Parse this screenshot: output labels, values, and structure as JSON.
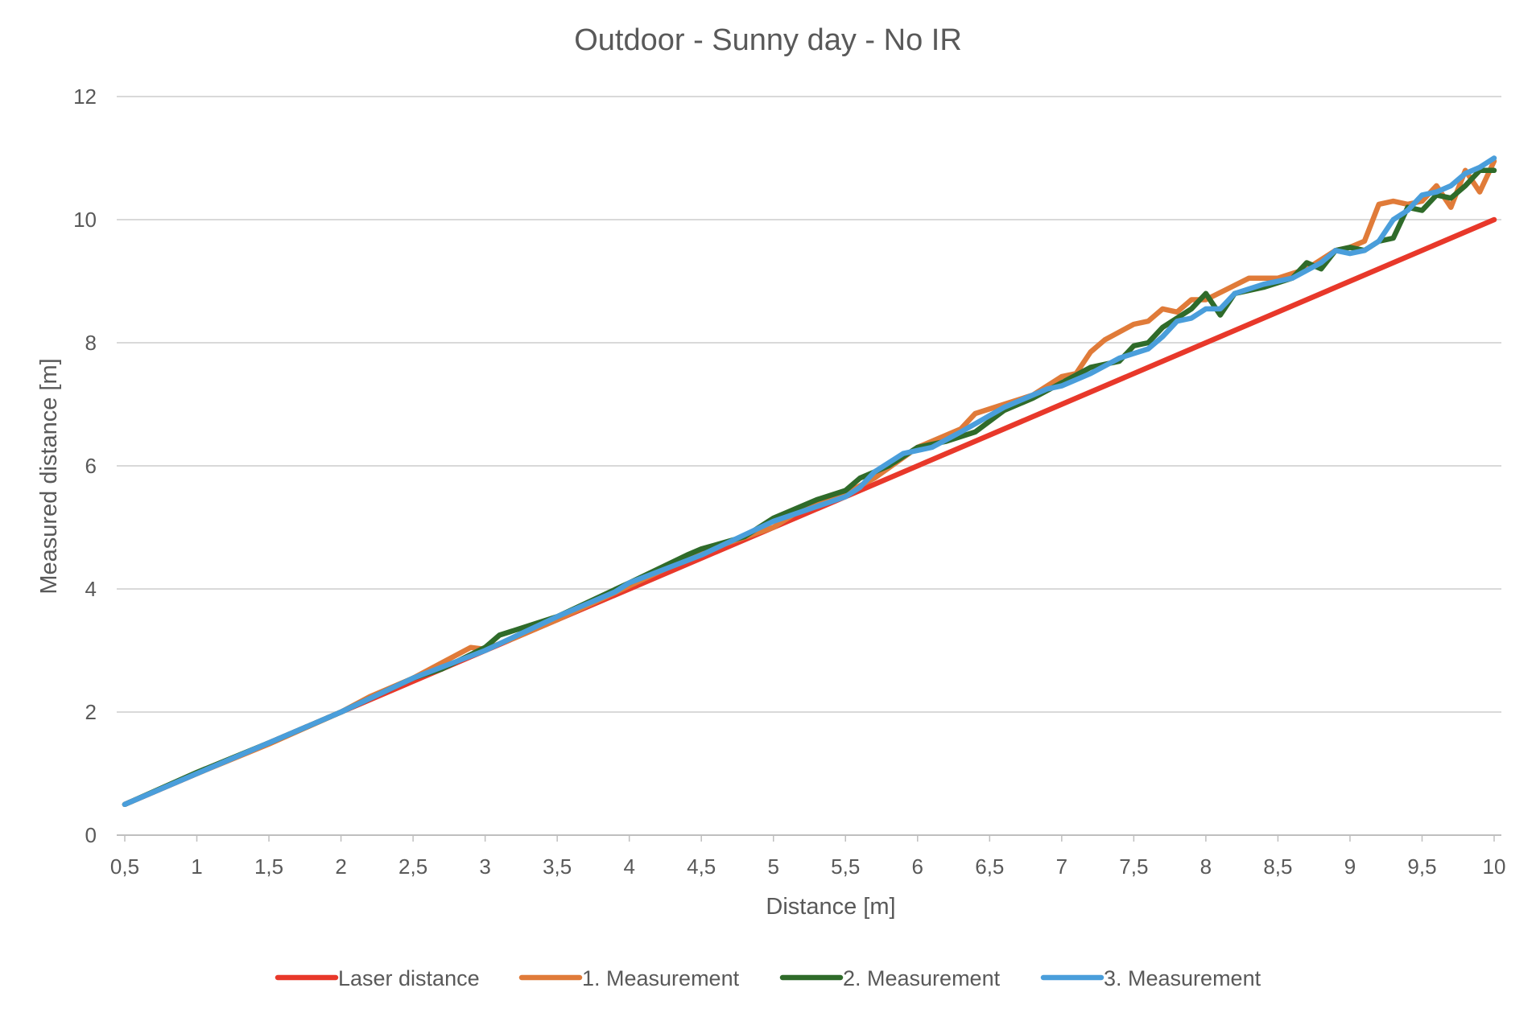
{
  "chart_data": {
    "type": "line",
    "title": "Outdoor - Sunny day - No IR",
    "xlabel": "Distance [m]",
    "ylabel": "Measured distance [m]",
    "xlim": [
      0.5,
      10
    ],
    "ylim": [
      0,
      12
    ],
    "grid": true,
    "legend_position": "bottom",
    "x_tick_labels": [
      "0,5",
      "1",
      "1,5",
      "2",
      "2,5",
      "3",
      "3,5",
      "4",
      "4,5",
      "5",
      "5,5",
      "6",
      "6,5",
      "7",
      "7,5",
      "8",
      "8,5",
      "9",
      "9,5",
      "10"
    ],
    "y_tick_labels": [
      "0",
      "2",
      "4",
      "6",
      "8",
      "10",
      "12"
    ],
    "x_step": 0.1,
    "series": [
      {
        "name": "Laser distance",
        "color": "#e8382a",
        "points": [
          [
            0.5,
            0.5
          ],
          [
            10,
            10
          ]
        ]
      },
      {
        "name": "1. Measurement",
        "color": "#e07b39",
        "points": [
          [
            0.5,
            0.5
          ],
          [
            1,
            1.0
          ],
          [
            1.5,
            1.48
          ],
          [
            2,
            2.0
          ],
          [
            2.2,
            2.25
          ],
          [
            2.5,
            2.55
          ],
          [
            2.7,
            2.8
          ],
          [
            2.9,
            3.05
          ],
          [
            3,
            3.02
          ],
          [
            3.2,
            3.2
          ],
          [
            3.5,
            3.5
          ],
          [
            4,
            4.05
          ],
          [
            4.5,
            4.6
          ],
          [
            5,
            5.0
          ],
          [
            5.2,
            5.3
          ],
          [
            5.5,
            5.55
          ],
          [
            5.7,
            5.8
          ],
          [
            6,
            6.3
          ],
          [
            6.3,
            6.6
          ],
          [
            6.4,
            6.85
          ],
          [
            6.6,
            7.0
          ],
          [
            6.8,
            7.15
          ],
          [
            7,
            7.45
          ],
          [
            7.1,
            7.5
          ],
          [
            7.2,
            7.85
          ],
          [
            7.3,
            8.05
          ],
          [
            7.5,
            8.3
          ],
          [
            7.6,
            8.35
          ],
          [
            7.7,
            8.55
          ],
          [
            7.8,
            8.5
          ],
          [
            7.9,
            8.7
          ],
          [
            8,
            8.7
          ],
          [
            8.3,
            9.05
          ],
          [
            8.5,
            9.05
          ],
          [
            8.7,
            9.2
          ],
          [
            8.9,
            9.5
          ],
          [
            9,
            9.55
          ],
          [
            9.1,
            9.65
          ],
          [
            9.2,
            10.25
          ],
          [
            9.3,
            10.3
          ],
          [
            9.4,
            10.25
          ],
          [
            9.5,
            10.3
          ],
          [
            9.6,
            10.55
          ],
          [
            9.7,
            10.2
          ],
          [
            9.8,
            10.8
          ],
          [
            9.9,
            10.45
          ],
          [
            10,
            10.95
          ]
        ]
      },
      {
        "name": "2. Measurement",
        "color": "#2f6b2a",
        "points": [
          [
            0.5,
            0.5
          ],
          [
            1,
            1.02
          ],
          [
            1.5,
            1.5
          ],
          [
            2,
            2.0
          ],
          [
            2.5,
            2.55
          ],
          [
            2.7,
            2.7
          ],
          [
            3,
            3.05
          ],
          [
            3.1,
            3.25
          ],
          [
            3.5,
            3.55
          ],
          [
            4,
            4.1
          ],
          [
            4.4,
            4.55
          ],
          [
            4.5,
            4.65
          ],
          [
            4.8,
            4.85
          ],
          [
            5,
            5.15
          ],
          [
            5.3,
            5.45
          ],
          [
            5.5,
            5.6
          ],
          [
            5.6,
            5.8
          ],
          [
            5.8,
            6.0
          ],
          [
            6,
            6.3
          ],
          [
            6.2,
            6.4
          ],
          [
            6.4,
            6.55
          ],
          [
            6.6,
            6.9
          ],
          [
            6.8,
            7.1
          ],
          [
            7,
            7.35
          ],
          [
            7.2,
            7.6
          ],
          [
            7.4,
            7.7
          ],
          [
            7.5,
            7.95
          ],
          [
            7.6,
            8.0
          ],
          [
            7.7,
            8.25
          ],
          [
            7.9,
            8.55
          ],
          [
            8,
            8.8
          ],
          [
            8.1,
            8.45
          ],
          [
            8.2,
            8.8
          ],
          [
            8.4,
            8.9
          ],
          [
            8.6,
            9.05
          ],
          [
            8.7,
            9.3
          ],
          [
            8.8,
            9.2
          ],
          [
            8.9,
            9.5
          ],
          [
            9,
            9.55
          ],
          [
            9.1,
            9.5
          ],
          [
            9.2,
            9.65
          ],
          [
            9.3,
            9.7
          ],
          [
            9.4,
            10.2
          ],
          [
            9.5,
            10.15
          ],
          [
            9.6,
            10.4
          ],
          [
            9.7,
            10.35
          ],
          [
            9.8,
            10.55
          ],
          [
            9.9,
            10.8
          ],
          [
            10,
            10.8
          ]
        ]
      },
      {
        "name": "3. Measurement",
        "color": "#4a9edb",
        "points": [
          [
            0.5,
            0.5
          ],
          [
            1,
            1.0
          ],
          [
            1.5,
            1.5
          ],
          [
            2,
            2.0
          ],
          [
            2.5,
            2.55
          ],
          [
            3,
            3.0
          ],
          [
            3.5,
            3.55
          ],
          [
            3.9,
            3.95
          ],
          [
            4,
            4.1
          ],
          [
            4.5,
            4.55
          ],
          [
            5,
            5.1
          ],
          [
            5.5,
            5.5
          ],
          [
            5.6,
            5.65
          ],
          [
            5.7,
            5.9
          ],
          [
            5.9,
            6.2
          ],
          [
            6.1,
            6.3
          ],
          [
            6.3,
            6.55
          ],
          [
            6.6,
            6.95
          ],
          [
            6.9,
            7.25
          ],
          [
            7,
            7.3
          ],
          [
            7.2,
            7.5
          ],
          [
            7.4,
            7.75
          ],
          [
            7.6,
            7.9
          ],
          [
            7.7,
            8.1
          ],
          [
            7.8,
            8.35
          ],
          [
            7.9,
            8.4
          ],
          [
            8,
            8.55
          ],
          [
            8.1,
            8.55
          ],
          [
            8.2,
            8.8
          ],
          [
            8.4,
            8.95
          ],
          [
            8.6,
            9.05
          ],
          [
            8.8,
            9.3
          ],
          [
            8.9,
            9.5
          ],
          [
            9,
            9.45
          ],
          [
            9.1,
            9.5
          ],
          [
            9.2,
            9.65
          ],
          [
            9.3,
            10.0
          ],
          [
            9.4,
            10.15
          ],
          [
            9.5,
            10.4
          ],
          [
            9.6,
            10.45
          ],
          [
            9.7,
            10.55
          ],
          [
            9.8,
            10.75
          ],
          [
            9.9,
            10.85
          ],
          [
            10,
            11.0
          ]
        ]
      }
    ]
  }
}
